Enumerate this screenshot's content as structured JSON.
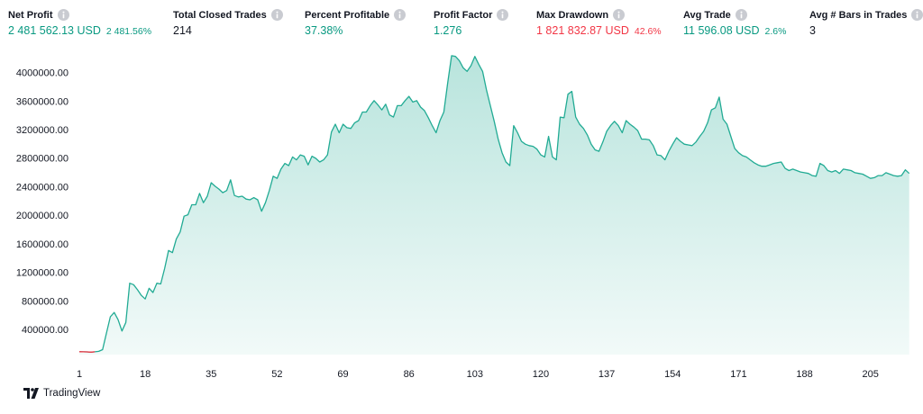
{
  "stats": [
    {
      "label": "Net Profit",
      "value": "2 481 562.13 USD",
      "percent": "2 481.56%",
      "color": "#089981"
    },
    {
      "label": "Total Closed Trades",
      "value": "214",
      "color": "#131722"
    },
    {
      "label": "Percent Profitable",
      "value": "37.38%",
      "color": "#089981"
    },
    {
      "label": "Profit Factor",
      "value": "1.276",
      "color": "#089981"
    },
    {
      "label": "Max Drawdown",
      "value": "1 821 832.87 USD",
      "percent": "42.6%",
      "color": "#f23645"
    },
    {
      "label": "Avg Trade",
      "value": "11 596.08 USD",
      "percent": "2.6%",
      "color": "#089981"
    },
    {
      "label": "Avg # Bars in Trades",
      "value": "3",
      "color": "#131722"
    }
  ],
  "brand": "TradingView",
  "chart_data": {
    "type": "area",
    "color": "#22ab94",
    "loss_color": "#f23645",
    "x": [
      1,
      2,
      3,
      4,
      5,
      6,
      7,
      8,
      9,
      10,
      11,
      12,
      13,
      14,
      15,
      16,
      17,
      18,
      19,
      20,
      21,
      22,
      23,
      24,
      25,
      26,
      27,
      28,
      29,
      30,
      31,
      32,
      33,
      34,
      35,
      36,
      37,
      38,
      39,
      40,
      41,
      42,
      43,
      44,
      45,
      46,
      47,
      48,
      49,
      50,
      51,
      52,
      53,
      54,
      55,
      56,
      57,
      58,
      59,
      60,
      61,
      62,
      63,
      64,
      65,
      66,
      67,
      68,
      69,
      70,
      71,
      72,
      73,
      74,
      75,
      76,
      77,
      78,
      79,
      80,
      81,
      82,
      83,
      84,
      85,
      86,
      87,
      88,
      89,
      90,
      91,
      92,
      93,
      94,
      95,
      96,
      97,
      98,
      99,
      100,
      101,
      102,
      103,
      104,
      105,
      106,
      107,
      108,
      109,
      110,
      111,
      112,
      113,
      114,
      115,
      116,
      117,
      118,
      119,
      120,
      121,
      122,
      123,
      124,
      125,
      126,
      127,
      128,
      129,
      130,
      131,
      132,
      133,
      134,
      135,
      136,
      137,
      138,
      139,
      140,
      141,
      142,
      143,
      144,
      145,
      146,
      147,
      148,
      149,
      150,
      151,
      152,
      153,
      154,
      155,
      156,
      157,
      158,
      159,
      160,
      161,
      162,
      163,
      164,
      165,
      166,
      167,
      168,
      169,
      170,
      171,
      172,
      173,
      174,
      175,
      176,
      177,
      178,
      179,
      180,
      181,
      182,
      183,
      184,
      185,
      186,
      187,
      188,
      189,
      190,
      191,
      192,
      193,
      194,
      195,
      196,
      197,
      198,
      199,
      200,
      201,
      202,
      203,
      204,
      205,
      206,
      207,
      208,
      209,
      210,
      211,
      212,
      213,
      214,
      215
    ],
    "values": [
      100000,
      99000,
      98000,
      94000,
      99000,
      105000,
      130000,
      362000,
      590000,
      650000,
      550000,
      390000,
      510000,
      1060000,
      1040000,
      970000,
      890000,
      840000,
      990000,
      930000,
      1060000,
      1050000,
      1270000,
      1520000,
      1490000,
      1680000,
      1780000,
      2000000,
      2020000,
      2160000,
      2160000,
      2320000,
      2190000,
      2280000,
      2470000,
      2420000,
      2380000,
      2330000,
      2360000,
      2510000,
      2290000,
      2270000,
      2280000,
      2240000,
      2230000,
      2260000,
      2230000,
      2070000,
      2190000,
      2360000,
      2560000,
      2530000,
      2660000,
      2740000,
      2710000,
      2830000,
      2790000,
      2860000,
      2840000,
      2720000,
      2840000,
      2810000,
      2760000,
      2790000,
      2860000,
      3180000,
      3290000,
      3170000,
      3290000,
      3240000,
      3230000,
      3310000,
      3340000,
      3460000,
      3460000,
      3550000,
      3620000,
      3560000,
      3490000,
      3570000,
      3420000,
      3390000,
      3550000,
      3550000,
      3620000,
      3680000,
      3600000,
      3620000,
      3530000,
      3480000,
      3380000,
      3270000,
      3170000,
      3340000,
      3460000,
      3870000,
      4250000,
      4240000,
      4180000,
      4080000,
      4030000,
      4110000,
      4240000,
      4130000,
      4030000,
      3770000,
      3550000,
      3330000,
      3080000,
      2890000,
      2760000,
      2710000,
      3270000,
      3170000,
      3050000,
      3010000,
      2990000,
      2980000,
      2940000,
      2860000,
      2830000,
      3120000,
      2830000,
      2790000,
      3390000,
      3380000,
      3710000,
      3750000,
      3390000,
      3290000,
      3230000,
      3140000,
      3010000,
      2930000,
      2910000,
      3040000,
      3190000,
      3270000,
      3330000,
      3270000,
      3170000,
      3340000,
      3290000,
      3250000,
      3200000,
      3080000,
      3080000,
      3070000,
      2990000,
      2860000,
      2850000,
      2790000,
      2910000,
      3010000,
      3100000,
      3050000,
      3010000,
      3000000,
      2990000,
      3040000,
      3120000,
      3190000,
      3310000,
      3490000,
      3520000,
      3670000,
      3360000,
      3290000,
      3120000,
      2950000,
      2890000,
      2850000,
      2830000,
      2790000,
      2750000,
      2720000,
      2700000,
      2700000,
      2720000,
      2740000,
      2750000,
      2760000,
      2670000,
      2640000,
      2660000,
      2640000,
      2620000,
      2610000,
      2600000,
      2570000,
      2560000,
      2740000,
      2710000,
      2640000,
      2620000,
      2640000,
      2600000,
      2660000,
      2650000,
      2640000,
      2610000,
      2600000,
      2590000,
      2560000,
      2530000,
      2540000,
      2570000,
      2570000,
      2610000,
      2590000,
      2570000,
      2560000,
      2570000,
      2650000,
      2600000
    ],
    "xlim": [
      1,
      216
    ],
    "xticks": [
      1,
      18,
      35,
      52,
      69,
      86,
      103,
      120,
      137,
      154,
      171,
      188,
      205
    ],
    "ylim": [
      60000,
      4400000
    ],
    "yticks": [
      {
        "value": 400000,
        "label": "400000.00"
      },
      {
        "value": 800000,
        "label": "800000.00"
      },
      {
        "value": 1200000,
        "label": "1200000.00"
      },
      {
        "value": 1600000,
        "label": "1600000.00"
      },
      {
        "value": 2000000,
        "label": "2000000.00"
      },
      {
        "value": 2400000,
        "label": "2400000.00"
      },
      {
        "value": 2800000,
        "label": "2800000.00"
      },
      {
        "value": 3200000,
        "label": "3200000.00"
      },
      {
        "value": 3600000,
        "label": "3600000.00"
      },
      {
        "value": 4000000,
        "label": "4000000.00"
      }
    ],
    "grid": false
  }
}
